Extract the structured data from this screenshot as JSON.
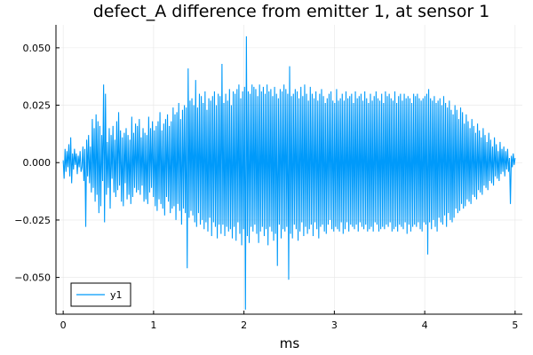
{
  "chart_data": {
    "type": "line",
    "title": "defect_A difference from emitter 1, at sensor 1",
    "xlabel": "ms",
    "ylabel": "",
    "xlim": [
      -0.08,
      5.08
    ],
    "ylim": [
      -0.066,
      0.06
    ],
    "x_ticks": [
      {
        "value": 0,
        "label": "0"
      },
      {
        "value": 1,
        "label": "1"
      },
      {
        "value": 2,
        "label": "2"
      },
      {
        "value": 3,
        "label": "3"
      },
      {
        "value": 4,
        "label": "4"
      },
      {
        "value": 5,
        "label": "5"
      }
    ],
    "y_ticks": [
      {
        "value": -0.05,
        "label": "−0.050"
      },
      {
        "value": -0.025,
        "label": "−0.025"
      },
      {
        "value": 0,
        "label": "0.000"
      },
      {
        "value": 0.025,
        "label": "0.025"
      },
      {
        "value": 0.05,
        "label": "0.050"
      }
    ],
    "grid": true,
    "legend": {
      "placement": "bottom-left"
    },
    "series": [
      {
        "name": "y1",
        "color": "#009AFA",
        "sampling": {
          "x_start": 0,
          "x_end": 5,
          "count": 500
        },
        "y": [
          0.001,
          -0.007,
          0.006,
          -0.004,
          0.005,
          -0.002,
          0.008,
          -0.006,
          0.011,
          -0.009,
          0.004,
          -0.003,
          0.006,
          -0.001,
          0.004,
          -0.005,
          0.003,
          -0.002,
          0.005,
          -0.004,
          -0.002,
          0.007,
          -0.008,
          0.006,
          -0.028,
          0.01,
          -0.006,
          0.012,
          -0.009,
          0.007,
          -0.013,
          0.019,
          -0.011,
          0.015,
          -0.017,
          0.021,
          -0.014,
          0.018,
          -0.022,
          0.016,
          -0.019,
          0.012,
          -0.008,
          0.034,
          -0.026,
          0.03,
          -0.014,
          0.009,
          -0.011,
          0.015,
          -0.02,
          0.012,
          -0.007,
          0.016,
          -0.013,
          0.01,
          -0.015,
          0.018,
          -0.012,
          0.022,
          -0.01,
          0.014,
          -0.017,
          0.011,
          -0.019,
          0.013,
          -0.009,
          0.015,
          -0.016,
          0.012,
          -0.014,
          0.01,
          -0.018,
          0.02,
          -0.015,
          0.013,
          -0.011,
          0.017,
          -0.013,
          0.016,
          -0.012,
          0.019,
          -0.014,
          0.011,
          -0.01,
          0.015,
          -0.017,
          0.013,
          -0.016,
          0.012,
          -0.018,
          0.02,
          -0.013,
          0.015,
          -0.011,
          0.018,
          -0.015,
          0.014,
          -0.019,
          0.016,
          -0.021,
          0.018,
          -0.016,
          0.022,
          -0.018,
          0.014,
          -0.02,
          0.017,
          -0.023,
          0.019,
          -0.015,
          0.021,
          -0.017,
          0.016,
          -0.022,
          0.018,
          -0.02,
          0.024,
          -0.019,
          0.021,
          -0.025,
          0.022,
          -0.018,
          0.026,
          -0.021,
          0.019,
          -0.027,
          0.023,
          -0.02,
          0.025,
          -0.022,
          0.024,
          -0.046,
          0.041,
          -0.024,
          0.027,
          -0.021,
          0.028,
          -0.023,
          0.025,
          -0.026,
          0.036,
          -0.028,
          0.024,
          -0.022,
          0.03,
          -0.027,
          0.029,
          -0.025,
          0.026,
          -0.029,
          0.031,
          -0.026,
          0.023,
          -0.03,
          0.028,
          -0.024,
          0.027,
          -0.032,
          0.029,
          -0.026,
          0.031,
          -0.028,
          0.025,
          -0.033,
          0.03,
          -0.027,
          0.029,
          -0.031,
          0.043,
          -0.027,
          0.026,
          -0.032,
          0.03,
          -0.028,
          0.027,
          -0.03,
          0.032,
          -0.029,
          0.025,
          -0.033,
          0.031,
          -0.028,
          0.03,
          -0.034,
          0.032,
          -0.026,
          0.034,
          -0.031,
          0.028,
          -0.036,
          0.031,
          -0.029,
          0.033,
          -0.064,
          0.055,
          -0.032,
          0.031,
          -0.035,
          0.03,
          -0.028,
          0.034,
          -0.03,
          0.033,
          -0.027,
          0.032,
          -0.031,
          0.029,
          -0.035,
          0.034,
          -0.03,
          0.031,
          -0.028,
          0.033,
          -0.032,
          0.03,
          -0.029,
          0.034,
          -0.036,
          0.031,
          -0.028,
          0.032,
          -0.03,
          0.029,
          -0.034,
          0.033,
          -0.031,
          0.03,
          -0.045,
          0.028,
          -0.027,
          0.032,
          -0.033,
          0.031,
          -0.029,
          0.034,
          -0.03,
          0.032,
          -0.028,
          0.03,
          -0.051,
          0.042,
          -0.031,
          0.029,
          -0.033,
          0.03,
          -0.027,
          0.032,
          -0.029,
          0.031,
          -0.034,
          0.028,
          -0.03,
          0.033,
          -0.026,
          0.029,
          -0.032,
          0.034,
          -0.028,
          0.03,
          -0.031,
          0.027,
          -0.029,
          0.033,
          -0.027,
          0.03,
          -0.032,
          0.028,
          -0.026,
          0.031,
          -0.029,
          0.027,
          -0.033,
          0.03,
          -0.028,
          0.032,
          -0.027,
          0.029,
          -0.03,
          0.026,
          -0.031,
          0.028,
          -0.027,
          0.03,
          -0.025,
          0.031,
          -0.029,
          0.027,
          -0.03,
          0.026,
          -0.028,
          0.032,
          -0.029,
          0.027,
          -0.03,
          0.028,
          -0.026,
          0.03,
          -0.031,
          0.027,
          -0.029,
          0.031,
          -0.026,
          0.028,
          -0.03,
          0.029,
          -0.027,
          0.03,
          -0.028,
          0.026,
          -0.029,
          0.031,
          -0.027,
          0.028,
          -0.03,
          0.029,
          -0.026,
          0.03,
          -0.028,
          0.027,
          -0.029,
          0.031,
          -0.027,
          0.028,
          -0.03,
          0.026,
          -0.029,
          0.03,
          -0.028,
          0.027,
          -0.03,
          0.029,
          -0.026,
          0.031,
          -0.027,
          0.028,
          -0.03,
          0.027,
          -0.029,
          0.03,
          -0.028,
          0.026,
          -0.029,
          0.031,
          -0.027,
          0.029,
          -0.028,
          0.03,
          -0.026,
          0.028,
          -0.03,
          0.027,
          -0.029,
          0.031,
          -0.028,
          0.026,
          -0.03,
          0.029,
          -0.027,
          0.03,
          -0.028,
          0.027,
          -0.029,
          0.03,
          -0.026,
          0.028,
          -0.031,
          0.029,
          -0.027,
          0.028,
          -0.03,
          0.026,
          -0.028,
          0.03,
          -0.027,
          0.029,
          -0.028,
          0.03,
          -0.026,
          0.028,
          -0.029,
          0.027,
          -0.03,
          0.028,
          -0.026,
          0.029,
          -0.027,
          0.03,
          -0.04,
          0.032,
          -0.026,
          0.028,
          -0.029,
          0.027,
          -0.025,
          0.029,
          -0.028,
          0.026,
          -0.03,
          0.027,
          -0.024,
          0.028,
          -0.026,
          0.025,
          -0.027,
          0.029,
          -0.023,
          0.026,
          -0.028,
          0.024,
          -0.022,
          0.027,
          -0.025,
          0.023,
          -0.026,
          0.021,
          -0.024,
          0.025,
          -0.02,
          0.023,
          -0.022,
          0.019,
          -0.021,
          0.024,
          -0.018,
          0.022,
          -0.02,
          0.017,
          -0.019,
          0.021,
          -0.016,
          0.018,
          -0.017,
          0.015,
          -0.018,
          0.019,
          -0.014,
          0.016,
          -0.015,
          0.013,
          -0.016,
          0.017,
          -0.012,
          0.014,
          -0.013,
          0.011,
          -0.014,
          0.015,
          -0.01,
          0.012,
          -0.011,
          0.009,
          -0.012,
          0.013,
          -0.008,
          0.01,
          -0.009,
          0.007,
          -0.01,
          0.011,
          -0.006,
          0.008,
          -0.007,
          0.005,
          -0.008,
          0.009,
          -0.005,
          0.006,
          -0.004,
          0.007,
          -0.006,
          0.005,
          -0.003,
          0.006,
          -0.004,
          0.002,
          -0.018,
          0.003,
          -0.002,
          0.004,
          -0.001,
          0.002
        ]
      }
    ]
  }
}
